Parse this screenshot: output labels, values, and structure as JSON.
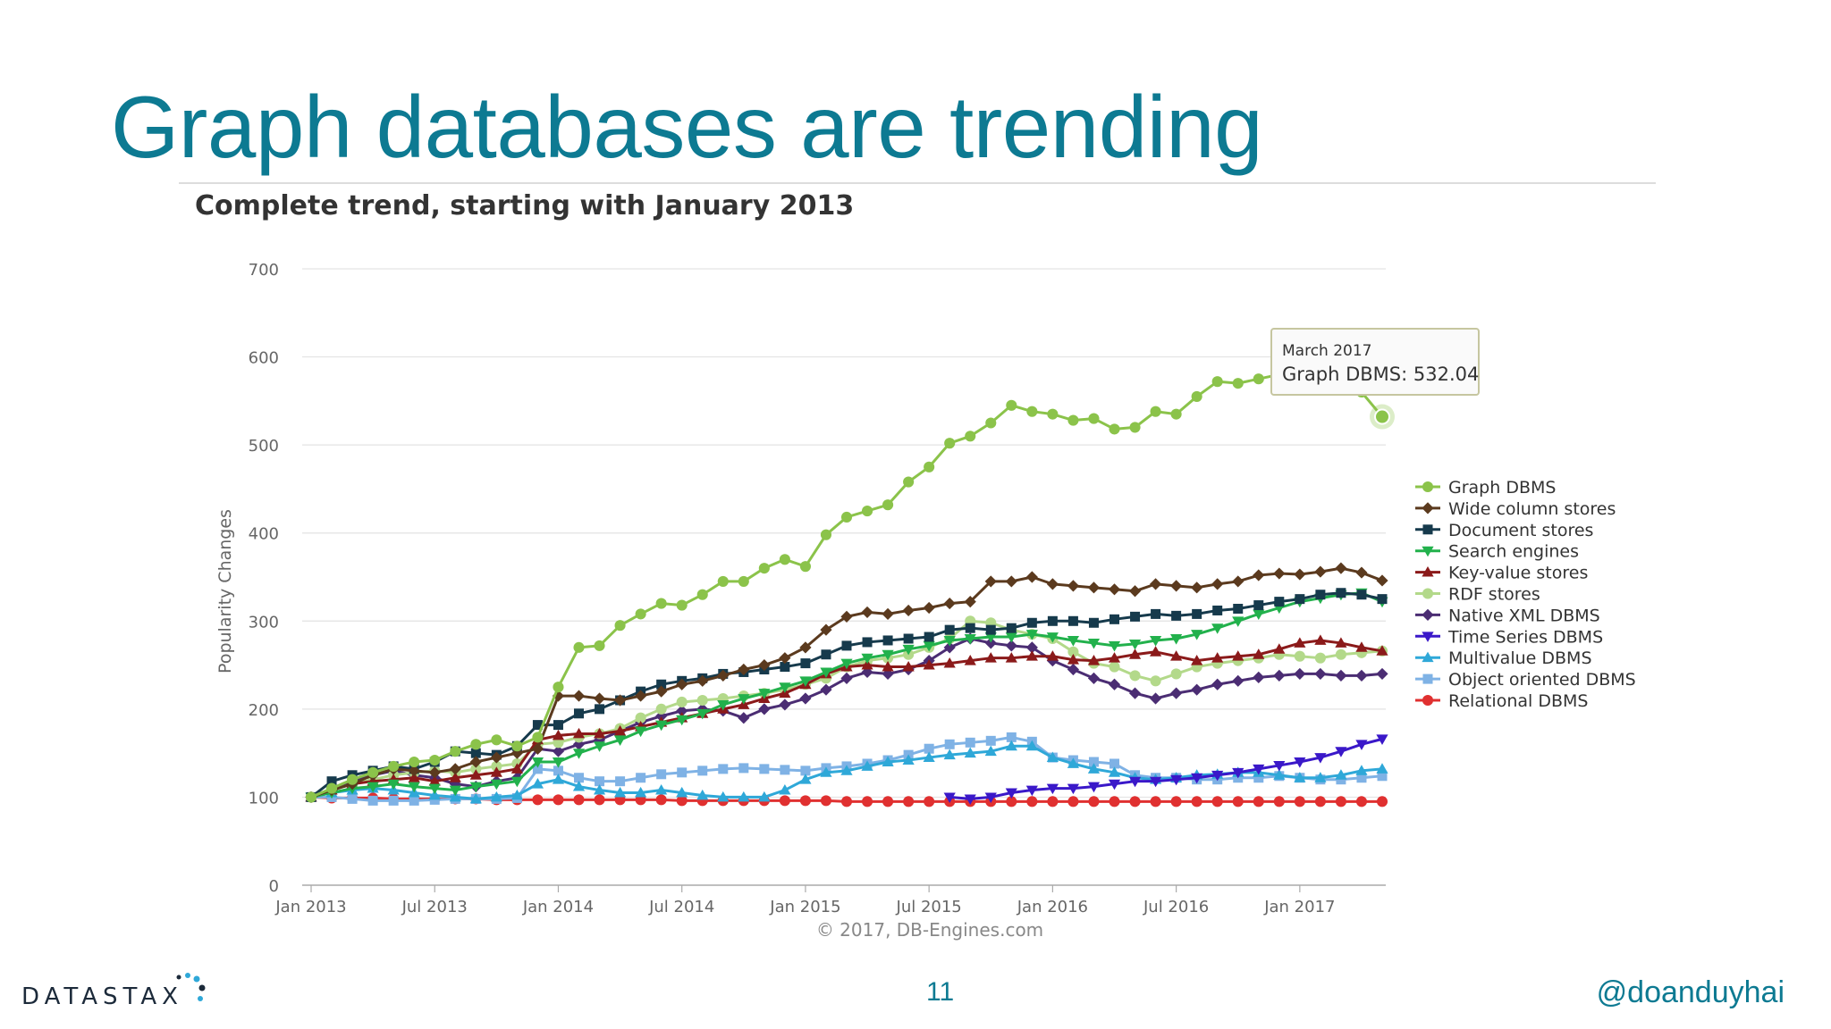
{
  "slide": {
    "title": "Graph databases are trending",
    "page_number": "11",
    "handle": "@doanduyhai",
    "logo_text": "DATASTAX"
  },
  "colors": {
    "title": "#0d7a92",
    "accent": "#0d7a92"
  },
  "chart_data": {
    "type": "line",
    "title": "Complete trend, starting with January 2013",
    "xlabel": "",
    "ylabel": "Popularity Changes",
    "ylim": [
      0,
      700
    ],
    "yticks": [
      0,
      100,
      200,
      300,
      400,
      500,
      600,
      700
    ],
    "xticks": [
      "Jan 2013",
      "Jul 2013",
      "Jan 2014",
      "Jul 2014",
      "Jan 2015",
      "Jul 2015",
      "Jan 2016",
      "Jul 2016",
      "Jan 2017"
    ],
    "x_start": "Jan 2013",
    "x_end": "Mar 2017",
    "credit": "© 2017, DB-Engines.com",
    "grid": true,
    "legend_position": "right",
    "tooltip": {
      "date": "March 2017",
      "text": "Graph DBMS: 532.04",
      "series": "Graph DBMS",
      "value": 532.04
    },
    "series": [
      {
        "name": "Graph DBMS",
        "color": "#8bc34a",
        "marker": "circle",
        "values": [
          100,
          110,
          120,
          128,
          135,
          140,
          142,
          152,
          160,
          165,
          158,
          168,
          225,
          270,
          272,
          295,
          308,
          320,
          318,
          330,
          345,
          345,
          360,
          370,
          362,
          398,
          418,
          425,
          432,
          458,
          475,
          502,
          510,
          525,
          545,
          538,
          535,
          528,
          530,
          518,
          520,
          538,
          535,
          555,
          572,
          570,
          575,
          580,
          585,
          590,
          582,
          560,
          532.04
        ]
      },
      {
        "name": "Wide column stores",
        "color": "#5b3a1e",
        "marker": "diamond",
        "values": [
          100,
          108,
          115,
          125,
          132,
          130,
          128,
          132,
          140,
          145,
          150,
          155,
          215,
          215,
          212,
          210,
          215,
          220,
          228,
          232,
          238,
          245,
          250,
          258,
          270,
          290,
          305,
          310,
          308,
          312,
          315,
          320,
          322,
          345,
          345,
          350,
          342,
          340,
          338,
          336,
          334,
          342,
          340,
          338,
          342,
          345,
          352,
          354,
          353,
          356,
          360,
          355,
          346
        ]
      },
      {
        "name": "Document stores",
        "color": "#163a4c",
        "marker": "square",
        "values": [
          100,
          118,
          125,
          130,
          135,
          132,
          140,
          152,
          150,
          148,
          158,
          182,
          182,
          195,
          200,
          210,
          220,
          228,
          232,
          235,
          240,
          242,
          245,
          248,
          252,
          262,
          272,
          276,
          278,
          280,
          282,
          290,
          292,
          290,
          292,
          298,
          300,
          300,
          298,
          302,
          305,
          308,
          306,
          308,
          312,
          314,
          318,
          322,
          325,
          330,
          332,
          330,
          325
        ]
      },
      {
        "name": "Search engines",
        "color": "#22b14c",
        "marker": "triangle-down",
        "values": [
          100,
          105,
          110,
          112,
          115,
          112,
          110,
          108,
          112,
          115,
          118,
          140,
          140,
          150,
          158,
          165,
          175,
          182,
          188,
          195,
          205,
          212,
          218,
          225,
          232,
          242,
          252,
          258,
          262,
          268,
          272,
          278,
          280,
          282,
          282,
          285,
          282,
          278,
          275,
          272,
          274,
          278,
          280,
          285,
          292,
          300,
          308,
          315,
          322,
          326,
          330,
          332,
          322
        ]
      },
      {
        "name": "Key-value stores",
        "color": "#8b1a1a",
        "marker": "triangle-up",
        "values": [
          100,
          108,
          115,
          118,
          120,
          122,
          118,
          122,
          125,
          128,
          132,
          165,
          170,
          172,
          172,
          175,
          180,
          185,
          190,
          195,
          200,
          205,
          212,
          218,
          228,
          240,
          248,
          250,
          248,
          248,
          250,
          252,
          255,
          258,
          258,
          260,
          260,
          256,
          255,
          258,
          262,
          265,
          260,
          255,
          258,
          260,
          262,
          268,
          275,
          278,
          275,
          270,
          266
        ]
      },
      {
        "name": "RDF stores",
        "color": "#b3d98a",
        "marker": "circle",
        "values": [
          100,
          108,
          115,
          120,
          125,
          128,
          130,
          128,
          132,
          135,
          138,
          160,
          162,
          168,
          172,
          178,
          190,
          200,
          208,
          210,
          212,
          215,
          218,
          222,
          228,
          235,
          248,
          255,
          258,
          262,
          270,
          280,
          300,
          298,
          290,
          285,
          280,
          265,
          252,
          248,
          238,
          232,
          240,
          248,
          252,
          255,
          258,
          262,
          260,
          258,
          262,
          264,
          266
        ]
      },
      {
        "name": "Native XML DBMS",
        "color": "#4b2d73",
        "marker": "diamond",
        "values": [
          100,
          108,
          118,
          125,
          130,
          125,
          122,
          115,
          112,
          118,
          122,
          155,
          152,
          160,
          165,
          175,
          185,
          192,
          198,
          200,
          198,
          190,
          200,
          205,
          212,
          222,
          235,
          242,
          240,
          245,
          255,
          270,
          280,
          275,
          272,
          270,
          255,
          245,
          235,
          228,
          218,
          212,
          218,
          222,
          228,
          232,
          236,
          238,
          240,
          240,
          238,
          238,
          240
        ]
      },
      {
        "name": "Time Series DBMS",
        "color": "#3a18c9",
        "marker": "triangle-down",
        "values": [
          null,
          null,
          null,
          null,
          null,
          null,
          null,
          null,
          null,
          null,
          null,
          null,
          null,
          null,
          null,
          null,
          null,
          null,
          null,
          null,
          null,
          null,
          null,
          null,
          null,
          null,
          null,
          null,
          null,
          null,
          null,
          100,
          98,
          100,
          105,
          108,
          110,
          110,
          112,
          115,
          118,
          118,
          120,
          122,
          125,
          128,
          132,
          136,
          140,
          145,
          152,
          160,
          166
        ]
      },
      {
        "name": "Multivalue DBMS",
        "color": "#2fa8d8",
        "marker": "triangle-up",
        "values": [
          100,
          105,
          108,
          110,
          108,
          105,
          102,
          100,
          98,
          100,
          102,
          115,
          120,
          112,
          108,
          105,
          105,
          108,
          105,
          102,
          100,
          100,
          100,
          108,
          120,
          128,
          130,
          135,
          140,
          142,
          145,
          148,
          150,
          152,
          158,
          158,
          145,
          138,
          132,
          128,
          122,
          120,
          122,
          125,
          126,
          128,
          128,
          125,
          122,
          122,
          125,
          130,
          132
        ]
      },
      {
        "name": "Object oriented DBMS",
        "color": "#7fb2e5",
        "marker": "square",
        "values": [
          100,
          100,
          98,
          96,
          96,
          96,
          97,
          98,
          98,
          98,
          99,
          132,
          130,
          122,
          118,
          118,
          122,
          126,
          128,
          130,
          132,
          133,
          132,
          131,
          130,
          133,
          135,
          138,
          142,
          148,
          155,
          160,
          162,
          164,
          168,
          163,
          145,
          142,
          140,
          138,
          125,
          122,
          122,
          120,
          120,
          122,
          122,
          124,
          122,
          120,
          120,
          122,
          124
        ]
      },
      {
        "name": "Relational DBMS",
        "color": "#e03030",
        "marker": "circle",
        "values": [
          100,
          99,
          99,
          99,
          98,
          98,
          98,
          98,
          98,
          97,
          97,
          97,
          97,
          97,
          97,
          97,
          97,
          97,
          96,
          96,
          96,
          96,
          96,
          96,
          96,
          96,
          95,
          95,
          95,
          95,
          95,
          95,
          95,
          95,
          95,
          95,
          95,
          95,
          95,
          95,
          95,
          95,
          95,
          95,
          95,
          95,
          95,
          95,
          95,
          95,
          95,
          95,
          95
        ]
      }
    ]
  }
}
